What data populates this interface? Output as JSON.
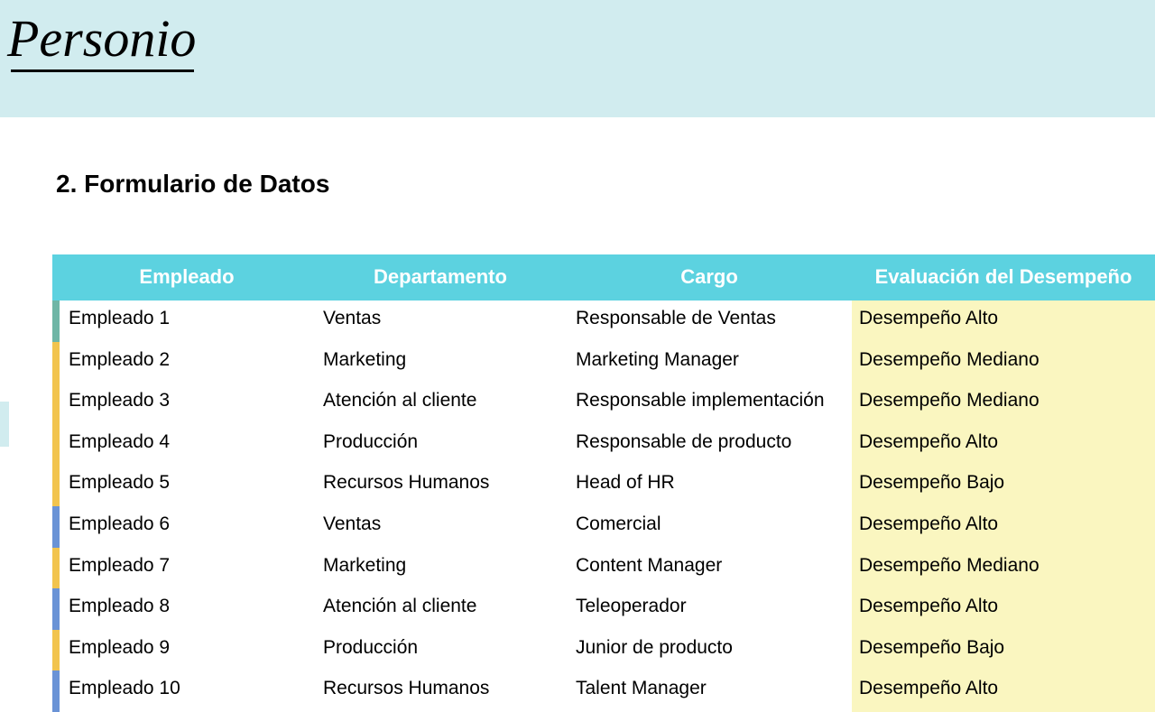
{
  "brand": "Personio",
  "section_title": "2. Formulario de Datos",
  "colors": {
    "header_band": "#d1ecef",
    "table_header_bg": "#5cd2e0",
    "table_header_text": "#ffffff",
    "eval_col_bg": "#faf6c0",
    "text": "#000000",
    "marker_blue": "#6a93d6",
    "marker_yellow": "#f2c44e",
    "marker_teal": "#6fb6a6"
  },
  "table": {
    "columns": [
      "Empleado",
      "Departamento",
      "Cargo",
      "Evaluación del Desempeño"
    ],
    "rows": [
      {
        "marker": "#6fb6a6",
        "empleado": "Empleado 1",
        "departamento": "Ventas",
        "cargo": "Responsable de Ventas",
        "evaluacion": "Desempeño Alto"
      },
      {
        "marker": "#f2c44e",
        "empleado": "Empleado 2",
        "departamento": "Marketing",
        "cargo": "Marketing Manager",
        "evaluacion": "Desempeño Mediano"
      },
      {
        "marker": "#f2c44e",
        "empleado": "Empleado 3",
        "departamento": "Atención al cliente",
        "cargo": "Responsable implementación",
        "evaluacion": "Desempeño Mediano"
      },
      {
        "marker": "#f2c44e",
        "empleado": "Empleado 4",
        "departamento": "Producción",
        "cargo": "Responsable de producto",
        "evaluacion": "Desempeño Alto"
      },
      {
        "marker": "#f2c44e",
        "empleado": "Empleado 5",
        "departamento": "Recursos Humanos",
        "cargo": "Head of HR",
        "evaluacion": "Desempeño Bajo"
      },
      {
        "marker": "#6a93d6",
        "empleado": "Empleado 6",
        "departamento": "Ventas",
        "cargo": "Comercial",
        "evaluacion": "Desempeño Alto"
      },
      {
        "marker": "#f2c44e",
        "empleado": "Empleado 7",
        "departamento": "Marketing",
        "cargo": "Content Manager",
        "evaluacion": "Desempeño Mediano"
      },
      {
        "marker": "#6a93d6",
        "empleado": "Empleado 8",
        "departamento": "Atención al cliente",
        "cargo": "Teleoperador",
        "evaluacion": "Desempeño Alto"
      },
      {
        "marker": "#f2c44e",
        "empleado": "Empleado 9",
        "departamento": "Producción",
        "cargo": "Junior de producto",
        "evaluacion": "Desempeño Bajo"
      },
      {
        "marker": "#6a93d6",
        "empleado": "Empleado 10",
        "departamento": "Recursos Humanos",
        "cargo": "Talent Manager",
        "evaluacion": "Desempeño Alto"
      }
    ]
  }
}
